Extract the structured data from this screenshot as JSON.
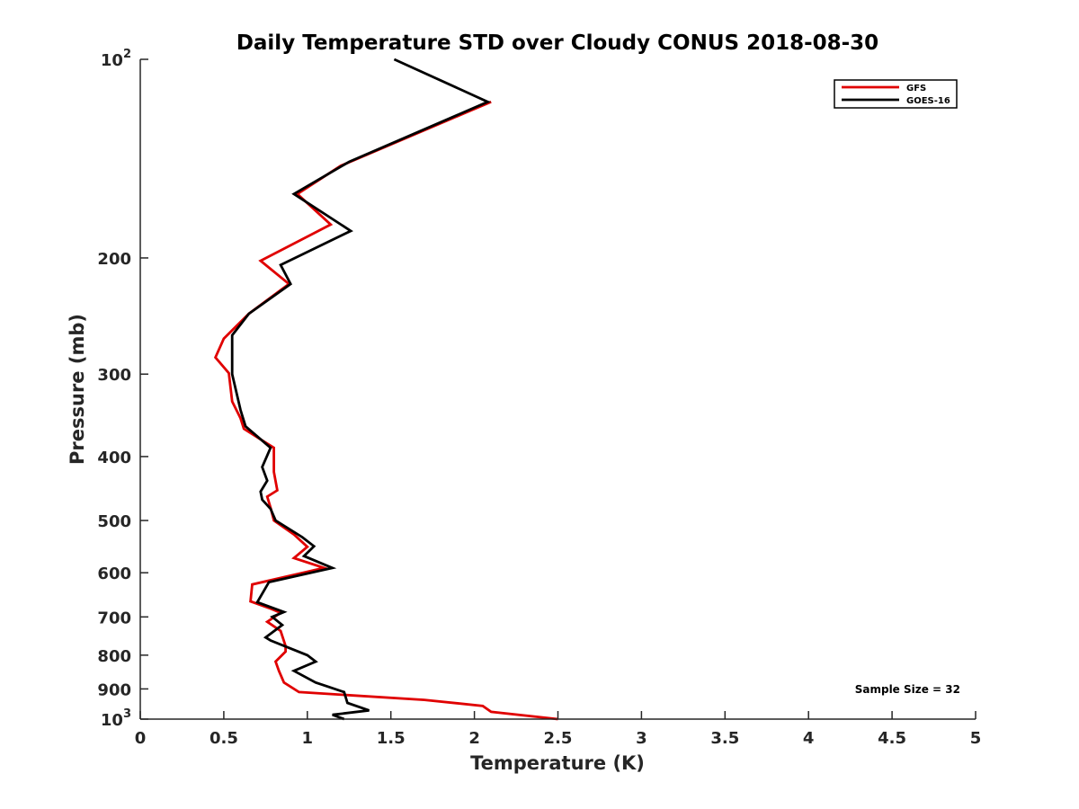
{
  "chart_data": {
    "type": "line",
    "title": "Daily Temperature STD over Cloudy CONUS 2018-08-30",
    "xlabel": "Temperature (K)",
    "ylabel": "Pressure (mb)",
    "xlim": [
      0,
      5
    ],
    "ylim": [
      100,
      1000
    ],
    "y_scale": "log",
    "y_reversed": true,
    "grid": false,
    "legend_position": "top-right",
    "x_ticks": [
      {
        "value": 0,
        "label": "0"
      },
      {
        "value": 0.5,
        "label": "0.5"
      },
      {
        "value": 1,
        "label": "1"
      },
      {
        "value": 1.5,
        "label": "1.5"
      },
      {
        "value": 2,
        "label": "2"
      },
      {
        "value": 2.5,
        "label": "2.5"
      },
      {
        "value": 3,
        "label": "3"
      },
      {
        "value": 3.5,
        "label": "3.5"
      },
      {
        "value": 4,
        "label": "4"
      },
      {
        "value": 4.5,
        "label": "4.5"
      },
      {
        "value": 5,
        "label": "5"
      }
    ],
    "y_ticks": [
      {
        "value": 100,
        "base": "10",
        "exp": "2"
      },
      {
        "value": 200,
        "label": "200"
      },
      {
        "value": 300,
        "label": "300"
      },
      {
        "value": 400,
        "label": "400"
      },
      {
        "value": 500,
        "label": "500"
      },
      {
        "value": 600,
        "label": "600"
      },
      {
        "value": 700,
        "label": "700"
      },
      {
        "value": 800,
        "label": "800"
      },
      {
        "value": 900,
        "label": "900"
      },
      {
        "value": 1000,
        "base": "10",
        "exp": "3"
      }
    ],
    "series": [
      {
        "name": "GFS",
        "color": "#e00000",
        "points": [
          [
            2.1,
            116
          ],
          [
            1.2,
            145
          ],
          [
            0.94,
            160
          ],
          [
            1.14,
            178
          ],
          [
            0.72,
            202
          ],
          [
            0.89,
            219
          ],
          [
            0.65,
            243
          ],
          [
            0.5,
            265
          ],
          [
            0.45,
            283
          ],
          [
            0.53,
            299
          ],
          [
            0.55,
            330
          ],
          [
            0.6,
            350
          ],
          [
            0.62,
            363
          ],
          [
            0.8,
            388
          ],
          [
            0.8,
            422
          ],
          [
            0.82,
            450
          ],
          [
            0.76,
            460
          ],
          [
            0.78,
            478
          ],
          [
            0.8,
            500
          ],
          [
            0.92,
            525
          ],
          [
            1.0,
            548
          ],
          [
            0.92,
            570
          ],
          [
            1.1,
            590
          ],
          [
            0.67,
            625
          ],
          [
            0.66,
            663
          ],
          [
            0.78,
            680
          ],
          [
            0.84,
            690
          ],
          [
            0.76,
            712
          ],
          [
            0.84,
            735
          ],
          [
            0.87,
            775
          ],
          [
            0.87,
            790
          ],
          [
            0.81,
            818
          ],
          [
            0.83,
            845
          ],
          [
            0.86,
            880
          ],
          [
            0.95,
            910
          ],
          [
            1.7,
            935
          ],
          [
            2.05,
            955
          ],
          [
            2.1,
            975
          ],
          [
            2.5,
            1000
          ]
        ]
      },
      {
        "name": "GOES-16",
        "color": "#000000",
        "points": [
          [
            1.52,
            100
          ],
          [
            2.08,
            116
          ],
          [
            1.25,
            143
          ],
          [
            0.92,
            160
          ],
          [
            1.26,
            182
          ],
          [
            0.84,
            205
          ],
          [
            0.9,
            219
          ],
          [
            0.65,
            243
          ],
          [
            0.55,
            262
          ],
          [
            0.55,
            300
          ],
          [
            0.6,
            340
          ],
          [
            0.63,
            360
          ],
          [
            0.78,
            388
          ],
          [
            0.73,
            415
          ],
          [
            0.76,
            435
          ],
          [
            0.72,
            452
          ],
          [
            0.73,
            465
          ],
          [
            0.78,
            480
          ],
          [
            0.81,
            500
          ],
          [
            0.97,
            530
          ],
          [
            1.04,
            547
          ],
          [
            0.98,
            566
          ],
          [
            1.15,
            590
          ],
          [
            0.77,
            620
          ],
          [
            0.7,
            665
          ],
          [
            0.86,
            688
          ],
          [
            0.79,
            700
          ],
          [
            0.85,
            720
          ],
          [
            0.75,
            752
          ],
          [
            0.78,
            760
          ],
          [
            1.0,
            800
          ],
          [
            1.05,
            818
          ],
          [
            0.92,
            845
          ],
          [
            1.05,
            880
          ],
          [
            1.22,
            910
          ],
          [
            1.24,
            945
          ],
          [
            1.37,
            970
          ],
          [
            1.15,
            985
          ],
          [
            1.22,
            1000
          ]
        ]
      }
    ],
    "annotations": [
      {
        "text": "Sample Size = 32",
        "position": "bottom-right"
      }
    ]
  }
}
